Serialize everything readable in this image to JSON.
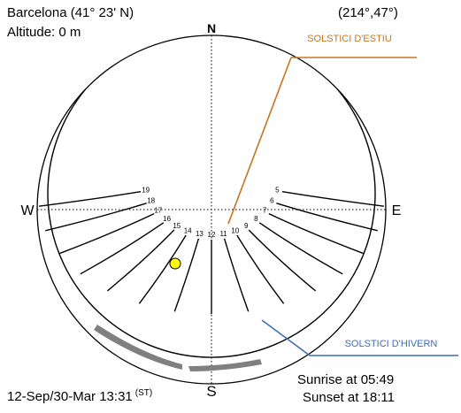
{
  "location": "Barcelona (41° 23' N)",
  "altitude": "Altitude: 0 m",
  "sun_position": "(214°,47°)",
  "date_time": "12-Sep/30-Mar 13:31",
  "time_basis": "(ST)",
  "sunrise": "Sunrise at 05:49",
  "sunset": "Sunset at 18:11",
  "compass": {
    "north": "N",
    "south": "S",
    "east": "E",
    "west": "W"
  },
  "callouts": {
    "summer_solstice": "SOLSTICI D'ESTIU",
    "winter_solstice": "SOLSTICI D'HIVERN"
  },
  "hour_labels": [
    "19",
    "18",
    "17",
    "16",
    "15",
    "14",
    "13",
    "12",
    "11",
    "10",
    "9",
    "8",
    "7",
    "6",
    "5"
  ],
  "colors": {
    "sun_marker": "#ffff00",
    "summer_callout": "#c8741e",
    "winter_callout": "#3f6fb5",
    "obstruction": "#808080"
  }
}
